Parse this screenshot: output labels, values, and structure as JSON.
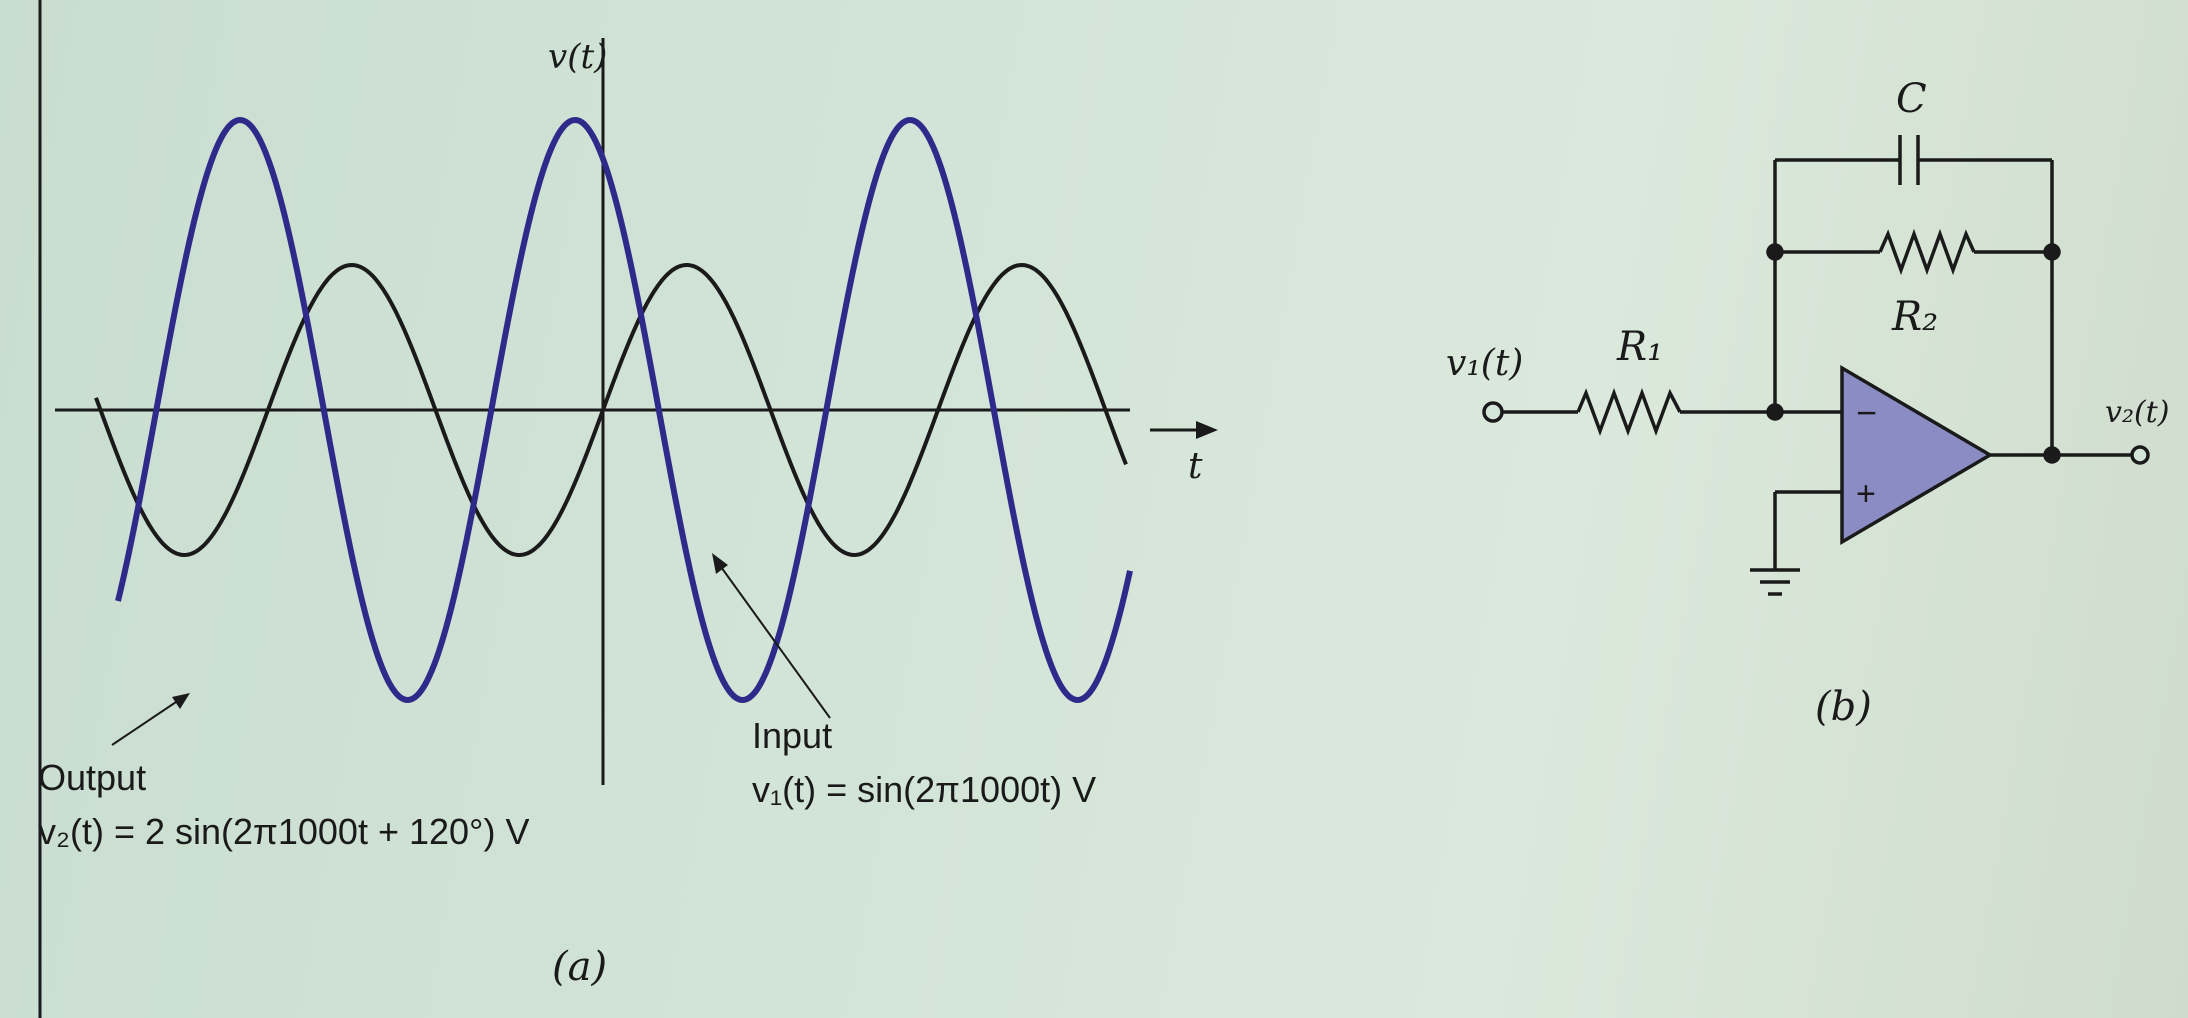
{
  "panel_a": {
    "y_axis_label": "v(t)",
    "x_axis_label": "t",
    "output_label": "Output",
    "output_equation": "v₂(t) = 2 sin(2π1000t + 120°) V",
    "input_label": "Input",
    "input_equation": "v₁(t) = sin(2π1000t) V",
    "caption": "(a)"
  },
  "panel_b": {
    "capacitor_label": "C",
    "r2_label": "R₂",
    "r1_label": "R₁",
    "input_node_label": "v₁(t)",
    "output_node_label": "v₂(t)",
    "minus_sign": "−",
    "plus_sign": "+",
    "caption": "(b)"
  },
  "colors": {
    "output_wave": "#2e2a8a",
    "input_wave": "#1a1a1a",
    "opamp_fill": "#8c8cc4",
    "ink": "#1a1a1a"
  },
  "waves": {
    "input": {
      "amplitude": 1,
      "frequency_hz": 1000,
      "phase_deg": 0
    },
    "output": {
      "amplitude": 2,
      "frequency_hz": 1000,
      "phase_deg": 120
    }
  }
}
